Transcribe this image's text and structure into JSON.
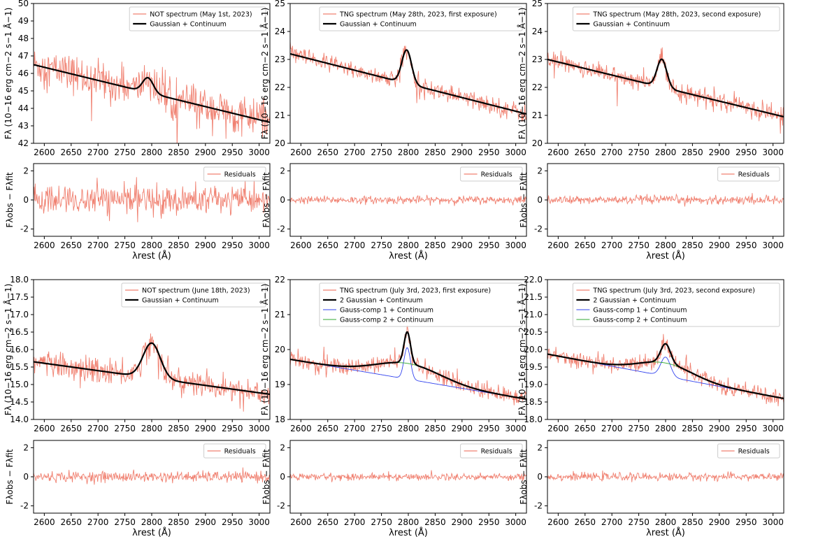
{
  "chart_data": {
    "type": "line",
    "xlabel": "λrest (Å)",
    "ylabel_flux": "Fλ (10−16 erg cm−2 s−1 Å−1)",
    "ylabel_resid": "Fλobs − Fλfit",
    "xlim": [
      2580,
      3020
    ],
    "xticks": [
      2600,
      2650,
      2700,
      2750,
      2800,
      2850,
      2900,
      2950,
      3000
    ],
    "residual_ylim": [
      -2.5,
      2.5
    ],
    "residual_yticks": [
      -2,
      0,
      2
    ],
    "colors": {
      "observed": "#f08070",
      "fit": "#000000",
      "comp1": "#3344ee",
      "comp2": "#33aa33",
      "frame": "#000000"
    },
    "panels": [
      {
        "name": "NOT May 1st",
        "ylim": [
          42,
          50
        ],
        "yticks": [
          42,
          43,
          44,
          45,
          46,
          47,
          48,
          49,
          50
        ],
        "legend": [
          "NOT spectrum (May 1st, 2023)",
          "Gaussian + Continuum"
        ],
        "residual_legend": "Residuals",
        "continuum": [
          46.5,
          43.2
        ],
        "lines": [
          {
            "center": 2793,
            "amp": 0.85,
            "sigma": 10
          }
        ],
        "noise": 1.0,
        "residual_noise": 0.85
      },
      {
        "name": "TNG May 28th first",
        "ylim": [
          20,
          25
        ],
        "yticks": [
          20,
          21,
          22,
          23,
          24,
          25
        ],
        "legend": [
          "TNG spectrum (May 28th, 2023, first exposure)",
          "Gaussian + Continuum"
        ],
        "residual_legend": "Residuals",
        "continuum": [
          23.2,
          21.05
        ],
        "lines": [
          {
            "center": 2797,
            "amp": 1.2,
            "sigma": 9
          }
        ],
        "noise": 0.3,
        "residual_noise": 0.22
      },
      {
        "name": "TNG May 28th second",
        "ylim": [
          20,
          25
        ],
        "yticks": [
          20,
          21,
          22,
          23,
          24,
          25
        ],
        "legend": [
          "TNG spectrum (May 28th, 2023, second exposure)",
          "Gaussian + Continuum"
        ],
        "residual_legend": "Residuals",
        "continuum": [
          23.0,
          20.95
        ],
        "lines": [
          {
            "center": 2793,
            "amp": 1.0,
            "sigma": 9
          }
        ],
        "noise": 0.3,
        "residual_noise": 0.25
      },
      {
        "name": "NOT June 18th",
        "ylim": [
          14,
          18
        ],
        "yticks": [
          14.0,
          14.5,
          15.0,
          15.5,
          16.0,
          16.5,
          17.0,
          17.5,
          18.0
        ],
        "legend": [
          "NOT spectrum (June 18th, 2023)",
          "Gaussian + Continuum"
        ],
        "residual_legend": "Residuals",
        "continuum": [
          15.65,
          14.72
        ],
        "lines": [
          {
            "center": 2800,
            "amp": 1.0,
            "sigma": 16
          }
        ],
        "noise": 0.35,
        "residual_noise": 0.3
      },
      {
        "name": "TNG July 3rd first",
        "ylim": [
          18,
          22
        ],
        "yticks": [
          18,
          19,
          20,
          21,
          22
        ],
        "legend": [
          "TNG spectrum (July 3rd, 2023, first exposure)",
          "2 Gaussian + Continuum",
          "Gauss-comp 1 + Continuum",
          "Gauss-comp 2 + Continuum"
        ],
        "residual_legend": "Residuals",
        "continuum": [
          19.72,
          18.58
        ],
        "lines": [
          {
            "center": 2798,
            "amp": 0.9,
            "sigma": 6
          },
          {
            "center": 2800,
            "amp": 0.45,
            "sigma": 60
          }
        ],
        "noise": 0.22,
        "residual_noise": 0.2
      },
      {
        "name": "TNG July 3rd second",
        "ylim": [
          18,
          22
        ],
        "yticks": [
          18.0,
          18.5,
          19.0,
          19.5,
          20.0,
          20.5,
          21.0,
          21.5,
          22.0
        ],
        "legend": [
          "TNG spectrum (July 3rd, 2023, second exposure)",
          "2 Gaussian + Continuum",
          "Gauss-comp 1 + Continuum",
          "Gauss-comp 2 + Continuum"
        ],
        "residual_legend": "Residuals",
        "continuum": [
          19.87,
          18.6
        ],
        "lines": [
          {
            "center": 2800,
            "amp": 0.55,
            "sigma": 9
          },
          {
            "center": 2800,
            "amp": 0.38,
            "sigma": 50
          }
        ],
        "noise": 0.22,
        "residual_noise": 0.22
      }
    ]
  }
}
